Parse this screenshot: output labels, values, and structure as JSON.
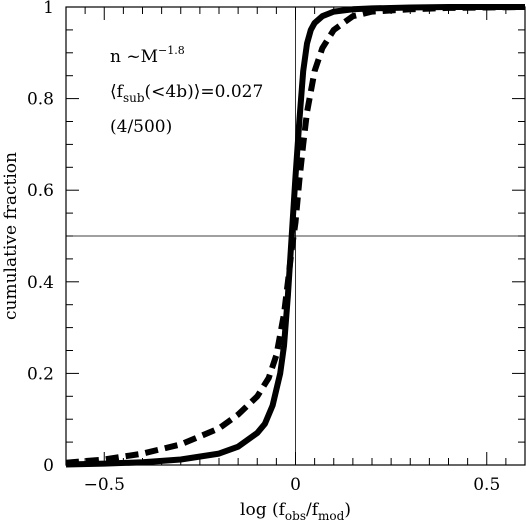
{
  "chart_data": {
    "type": "line",
    "xlabel": {
      "prefix": "log (f",
      "sub1": "obs",
      "mid": "/f",
      "sub2": "mod",
      "suffix": ")"
    },
    "ylabel": "cumulative fraction",
    "xlim": [
      -0.6,
      0.6
    ],
    "ylim": [
      0,
      1
    ],
    "x_ticks": [
      -0.5,
      0,
      0.5
    ],
    "x_tick_labels": [
      "−0.5",
      "0",
      "0.5"
    ],
    "y_ticks": [
      0,
      0.2,
      0.4,
      0.6,
      0.8,
      1
    ],
    "y_tick_labels": [
      "0",
      "0.2",
      "0.4",
      "0.6",
      "0.8",
      "1"
    ],
    "reference_lines": {
      "x": 0,
      "y": 0.5
    },
    "annotations": {
      "line1": {
        "text": "n  ~M",
        "sup": "−1.8"
      },
      "line2": {
        "open": "⟨f",
        "sub": "sub",
        "rest": "(<4b)⟩=0.027"
      },
      "line3": {
        "text": "(4/500)"
      }
    },
    "series": [
      {
        "style": "solid",
        "color": "#000000",
        "x": [
          -0.6,
          -0.5,
          -0.4,
          -0.3,
          -0.2,
          -0.15,
          -0.1,
          -0.08,
          -0.06,
          -0.04,
          -0.03,
          -0.02,
          -0.01,
          0.0,
          0.01,
          0.02,
          0.03,
          0.04,
          0.05,
          0.07,
          0.1,
          0.15,
          0.2,
          0.3,
          0.4,
          0.5,
          0.6
        ],
        "y": [
          0.001,
          0.003,
          0.006,
          0.012,
          0.025,
          0.04,
          0.07,
          0.09,
          0.13,
          0.2,
          0.26,
          0.37,
          0.5,
          0.63,
          0.75,
          0.86,
          0.92,
          0.95,
          0.965,
          0.98,
          0.99,
          0.995,
          0.997,
          0.999,
          1.0,
          1.0,
          1.0
        ]
      },
      {
        "style": "dashed",
        "color": "#000000",
        "x": [
          -0.6,
          -0.5,
          -0.4,
          -0.3,
          -0.2,
          -0.15,
          -0.1,
          -0.07,
          -0.05,
          -0.03,
          -0.02,
          -0.01,
          0.0,
          0.01,
          0.02,
          0.03,
          0.05,
          0.07,
          0.1,
          0.15,
          0.2,
          0.3,
          0.4,
          0.5,
          0.6
        ],
        "y": [
          0.005,
          0.012,
          0.025,
          0.045,
          0.08,
          0.11,
          0.15,
          0.19,
          0.24,
          0.33,
          0.4,
          0.47,
          0.53,
          0.62,
          0.7,
          0.77,
          0.86,
          0.91,
          0.95,
          0.98,
          0.99,
          0.995,
          0.998,
          0.999,
          1.0
        ]
      }
    ]
  }
}
